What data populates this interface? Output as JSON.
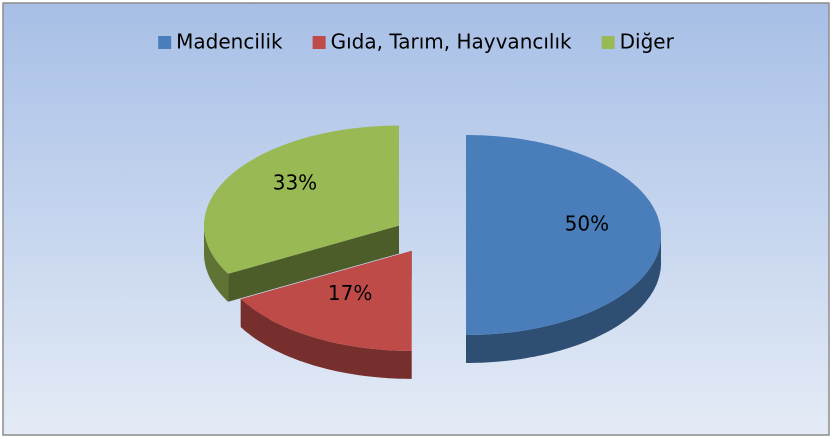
{
  "chart_data": {
    "type": "pie",
    "categories": [
      "Madencilik",
      "Gıda, Tarım, Hayvancılık",
      "Diğer"
    ],
    "values": [
      50,
      17,
      33
    ],
    "value_labels": [
      "50%",
      "17%",
      "33%"
    ],
    "colors": [
      "#4a7ebb",
      "#be4b48",
      "#98b954"
    ],
    "legend": "top"
  }
}
